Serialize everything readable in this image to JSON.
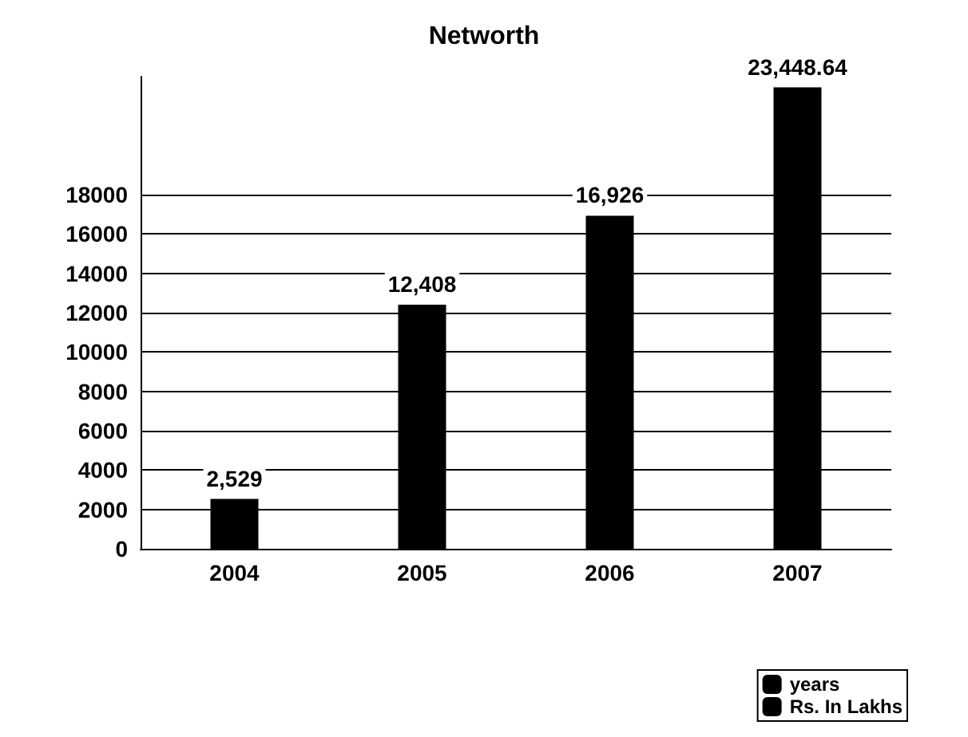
{
  "chart_data": {
    "type": "bar",
    "title": "Networth",
    "categories": [
      "2004",
      "2005",
      "2006",
      "2007"
    ],
    "series": [
      {
        "name": "years",
        "color": "#000000",
        "values": [
          null,
          null,
          null,
          null
        ]
      },
      {
        "name": "Rs. In Lakhs",
        "color": "#000000",
        "values": [
          2529,
          12408,
          16926,
          23448.64
        ],
        "value_labels": [
          "2,529",
          "12,408",
          "16,926",
          "23,448.64"
        ]
      }
    ],
    "ylim": [
      0,
      24000
    ],
    "yticks": [
      0,
      2000,
      4000,
      6000,
      8000,
      10000,
      12000,
      14000,
      16000,
      18000
    ],
    "grid": "y",
    "legend": "bottom right"
  }
}
